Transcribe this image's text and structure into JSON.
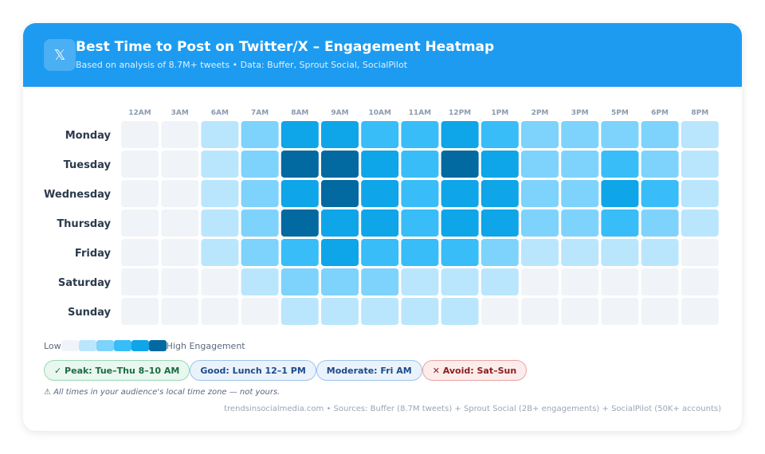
{
  "header": {
    "logo_glyph": "𝕏",
    "logo_icon": "x-logo-icon",
    "title": "Best Time to Post on Twitter/X – Engagement Heatmap",
    "subtitle": "Based on analysis of 8.7M+ tweets • Data: Buffer, Sprout Social, SocialPilot"
  },
  "chart_data": {
    "type": "heatmap",
    "title": "Best Time to Post on Twitter/X – Engagement Heatmap",
    "x": [
      "12AM",
      "3AM",
      "6AM",
      "7AM",
      "8AM",
      "9AM",
      "10AM",
      "11AM",
      "12PM",
      "1PM",
      "2PM",
      "3PM",
      "5PM",
      "6PM",
      "8PM"
    ],
    "y": [
      "Monday",
      "Tuesday",
      "Wednesday",
      "Thursday",
      "Friday",
      "Saturday",
      "Sunday"
    ],
    "values": [
      [
        0,
        0,
        1,
        2,
        4,
        4,
        3,
        3,
        4,
        3,
        2,
        2,
        2,
        2,
        1
      ],
      [
        0,
        0,
        1,
        2,
        5,
        5,
        4,
        3,
        5,
        4,
        2,
        2,
        3,
        2,
        1
      ],
      [
        0,
        0,
        1,
        2,
        4,
        5,
        4,
        3,
        4,
        4,
        2,
        2,
        4,
        3,
        1
      ],
      [
        0,
        0,
        1,
        2,
        5,
        4,
        4,
        3,
        4,
        4,
        2,
        2,
        3,
        2,
        1
      ],
      [
        0,
        0,
        1,
        2,
        3,
        4,
        3,
        3,
        3,
        2,
        1,
        1,
        1,
        1,
        0
      ],
      [
        0,
        0,
        0,
        1,
        2,
        2,
        2,
        1,
        1,
        1,
        0,
        0,
        0,
        0,
        0
      ],
      [
        0,
        0,
        0,
        0,
        1,
        1,
        1,
        1,
        1,
        0,
        0,
        0,
        0,
        0,
        0
      ]
    ],
    "scale_colors": [
      "#f0f4f8",
      "#bae6fd",
      "#7dd3fc",
      "#38bdf8",
      "#0ea5e9",
      "#0369a1"
    ],
    "legend_low": "Low",
    "legend_high": "High Engagement"
  },
  "badges": [
    {
      "text": "✓ Peak: Tue–Thu 8–10 AM",
      "kind": "peak"
    },
    {
      "text": "Good: Lunch 12–1 PM",
      "kind": "good"
    },
    {
      "text": "Moderate: Fri AM",
      "kind": "moderate"
    },
    {
      "text": "✕ Avoid: Sat–Sun",
      "kind": "avoid"
    }
  ],
  "note": "⚠ All times in your audience's local time zone — not yours.",
  "footer": "trendsinsocialmedia.com • Sources: Buffer (8.7M tweets) + Sprout Social (2B+ engagements) + SocialPilot (50K+ accounts)"
}
